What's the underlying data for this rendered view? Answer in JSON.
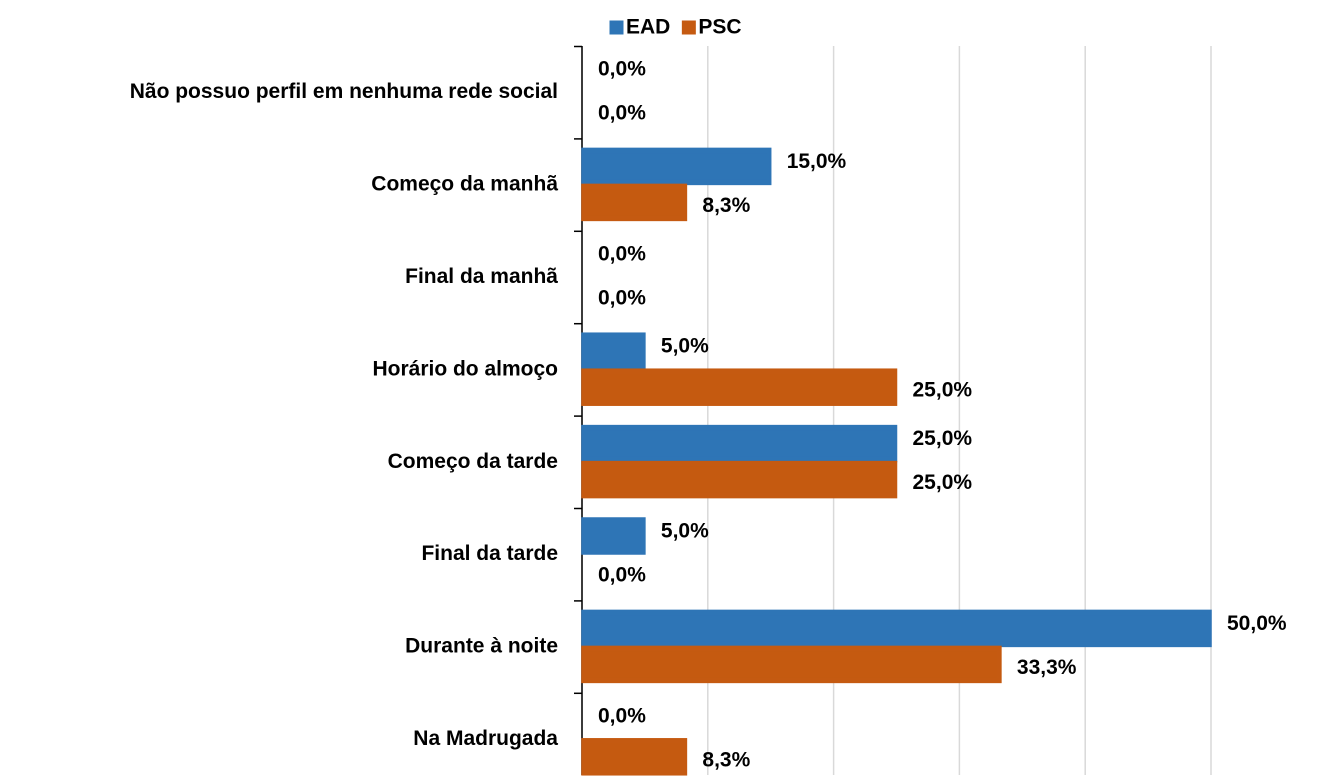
{
  "chart_data": {
    "type": "bar",
    "orientation": "horizontal",
    "categories": [
      "Não possuo perfil em nenhuma rede social",
      "Começo da manhã",
      "Final da manhã",
      "Horário do almoço",
      "Começo da tarde",
      "Final da tarde",
      "Durante à noite",
      "Na Madrugada"
    ],
    "series": [
      {
        "name": "EAD",
        "color": "#2e75b6",
        "values": [
          0,
          15,
          0,
          5,
          25,
          5,
          50,
          0
        ],
        "value_labels": [
          "0,0%",
          "15,0%",
          "0,0%",
          "5,0%",
          "25,0%",
          "5,0%",
          "50,0%",
          "0,0%"
        ]
      },
      {
        "name": "PSC",
        "color": "#c55a11",
        "values": [
          0,
          8.3,
          0,
          25,
          25,
          0,
          33.3,
          8.3
        ],
        "value_labels": [
          "0,0%",
          "8,3%",
          "0,0%",
          "25,0%",
          "25,0%",
          "0,0%",
          "33,3%",
          "8,3%"
        ]
      }
    ],
    "xlim": [
      0,
      50
    ],
    "xticks": [
      0,
      10,
      20,
      30,
      40,
      50
    ],
    "grid": true,
    "legend": "top"
  }
}
